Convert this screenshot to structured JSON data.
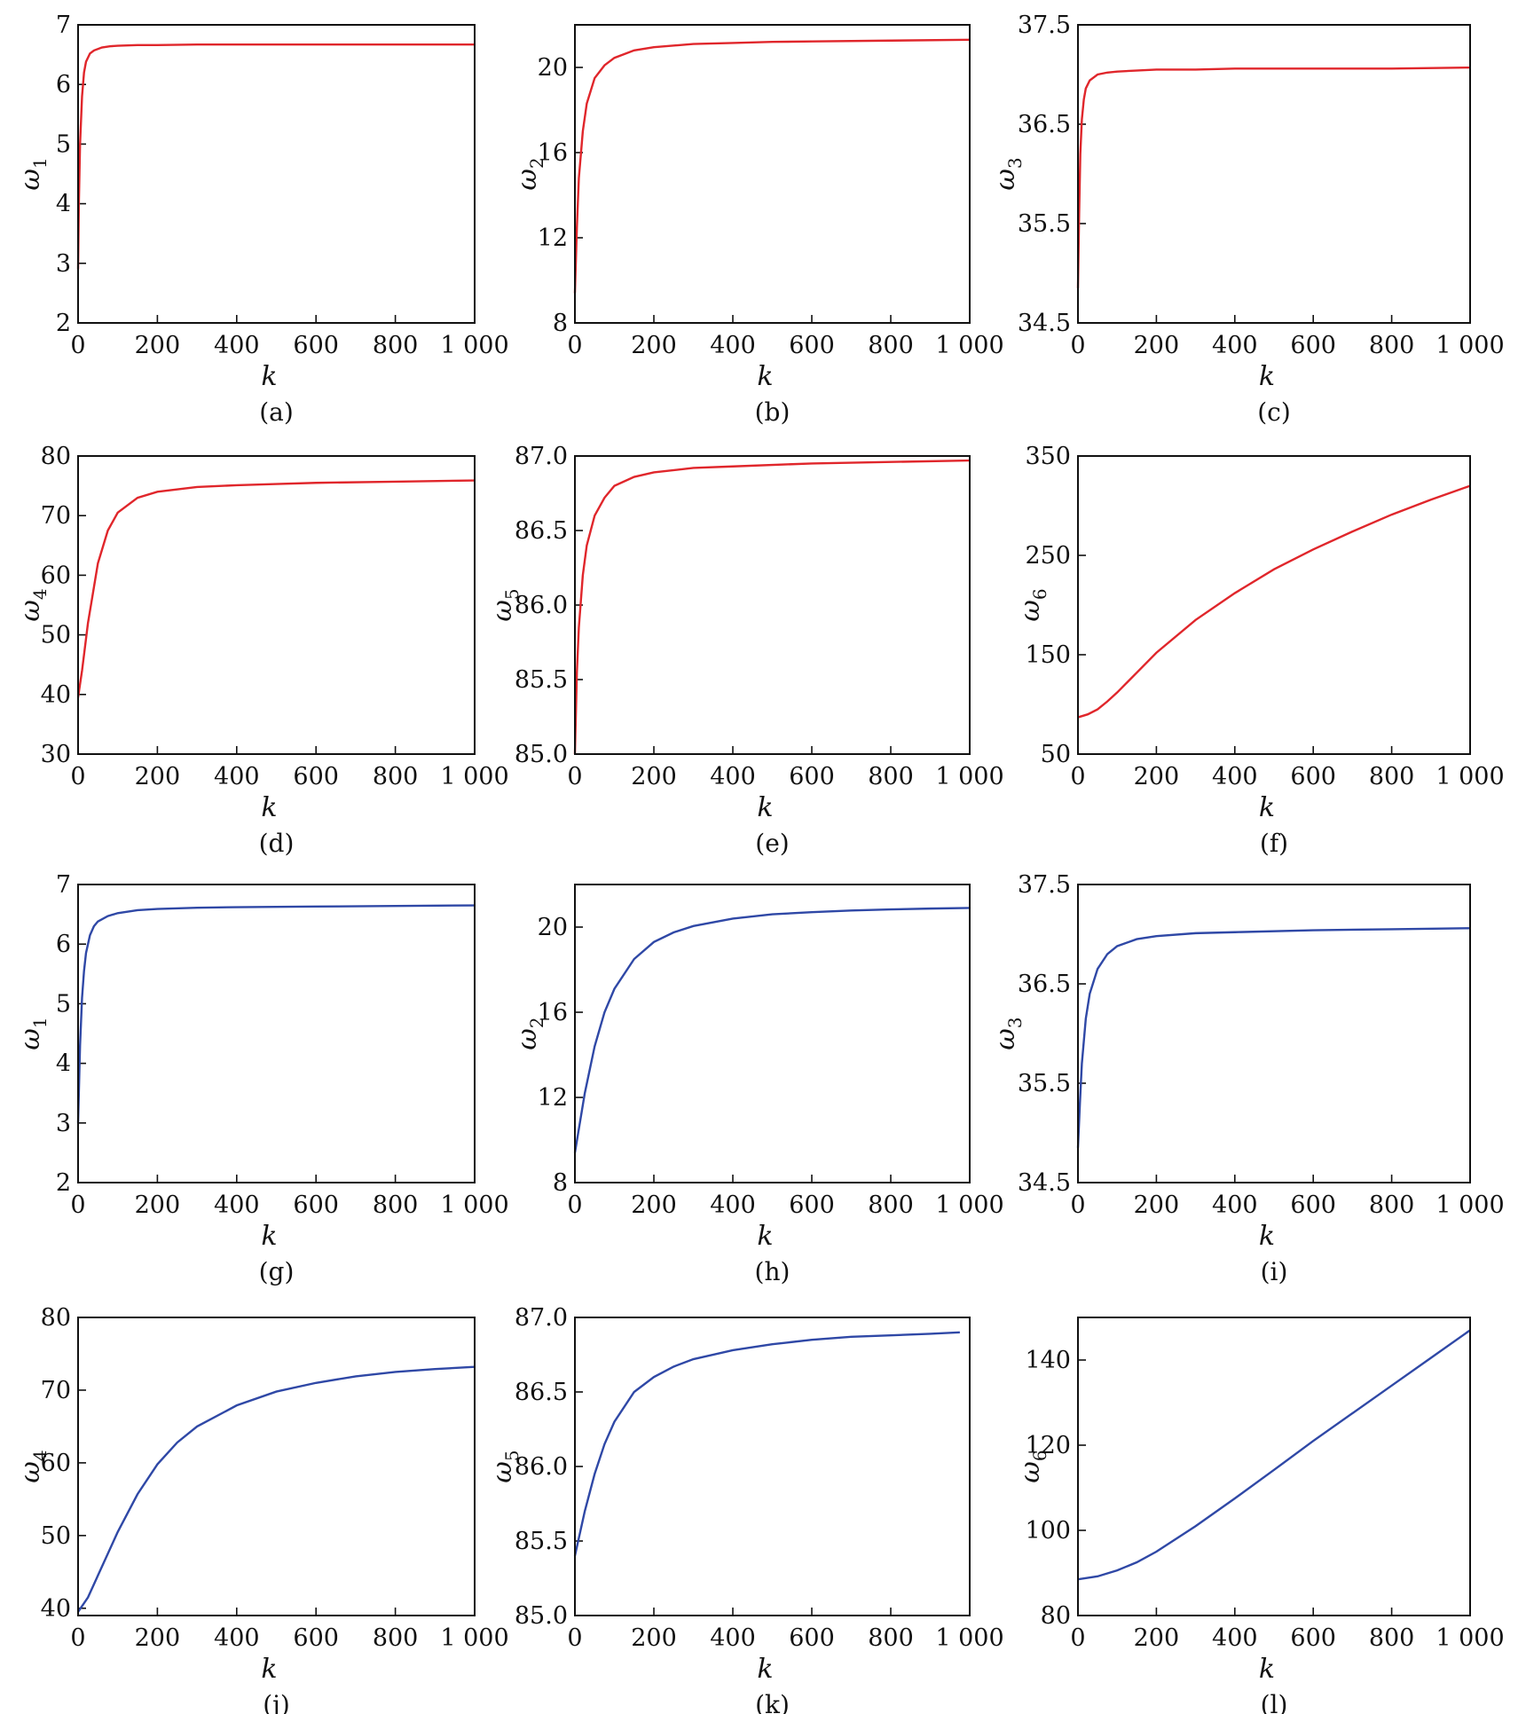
{
  "figure": {
    "background": "#ffffff"
  },
  "chart_data": [
    {
      "id": "a",
      "caption": "(a)",
      "type": "line",
      "xlabel": "k",
      "ylabel": "ω",
      "ylabel_sub": "1",
      "color": "#e0262b",
      "xlim": [
        0,
        1000
      ],
      "ylim": [
        2,
        7
      ],
      "xticks": [
        0,
        200,
        400,
        600,
        800,
        1000
      ],
      "xtick_labels": [
        "0",
        "200",
        "400",
        "600",
        "800",
        "1 000"
      ],
      "yticks": [
        2,
        3,
        4,
        5,
        6,
        7
      ],
      "ytick_labels": [
        "2",
        "3",
        "4",
        "5",
        "6",
        "7"
      ],
      "x": [
        0,
        2,
        5,
        10,
        15,
        20,
        30,
        40,
        60,
        80,
        100,
        150,
        200,
        300,
        400,
        600,
        800,
        1000
      ],
      "y": [
        2.9,
        4.0,
        5.0,
        5.8,
        6.2,
        6.38,
        6.52,
        6.57,
        6.62,
        6.64,
        6.65,
        6.66,
        6.66,
        6.67,
        6.67,
        6.67,
        6.67,
        6.67
      ]
    },
    {
      "id": "b",
      "caption": "(b)",
      "type": "line",
      "xlabel": "k",
      "ylabel": "ω",
      "ylabel_sub": "2",
      "color": "#e0262b",
      "xlim": [
        0,
        1000
      ],
      "ylim": [
        8,
        22
      ],
      "xticks": [
        0,
        200,
        400,
        600,
        800,
        1000
      ],
      "xtick_labels": [
        "0",
        "200",
        "400",
        "600",
        "800",
        "1 000"
      ],
      "yticks": [
        8,
        12,
        16,
        20
      ],
      "ytick_labels": [
        "8",
        "12",
        "16",
        "20"
      ],
      "x": [
        0,
        5,
        10,
        20,
        30,
        50,
        75,
        100,
        150,
        200,
        300,
        400,
        500,
        600,
        800,
        1000
      ],
      "y": [
        9.4,
        12.5,
        14.8,
        17.0,
        18.3,
        19.5,
        20.1,
        20.45,
        20.8,
        20.95,
        21.1,
        21.15,
        21.2,
        21.22,
        21.26,
        21.3
      ]
    },
    {
      "id": "c",
      "caption": "(c)",
      "type": "line",
      "xlabel": "k",
      "ylabel": "ω",
      "ylabel_sub": "3",
      "color": "#e0262b",
      "xlim": [
        0,
        1000
      ],
      "ylim": [
        34.5,
        37.5
      ],
      "xticks": [
        0,
        200,
        400,
        600,
        800,
        1000
      ],
      "xtick_labels": [
        "0",
        "200",
        "400",
        "600",
        "800",
        "1 000"
      ],
      "yticks": [
        34.5,
        35.5,
        36.5,
        37.5
      ],
      "ytick_labels": [
        "34.5",
        "35.5",
        "36.5",
        "37.5"
      ],
      "x": [
        0,
        3,
        6,
        10,
        15,
        20,
        30,
        50,
        75,
        100,
        200,
        300,
        400,
        600,
        800,
        1000
      ],
      "y": [
        34.85,
        35.6,
        36.2,
        36.55,
        36.75,
        36.86,
        36.94,
        37.0,
        37.02,
        37.03,
        37.05,
        37.05,
        37.06,
        37.06,
        37.06,
        37.07
      ]
    },
    {
      "id": "d",
      "caption": "(d)",
      "type": "line",
      "xlabel": "k",
      "ylabel": "ω",
      "ylabel_sub": "4",
      "color": "#e0262b",
      "xlim": [
        0,
        1000
      ],
      "ylim": [
        30,
        80
      ],
      "xticks": [
        0,
        200,
        400,
        600,
        800,
        1000
      ],
      "xtick_labels": [
        "0",
        "200",
        "400",
        "600",
        "800",
        "1 000"
      ],
      "yticks": [
        30,
        40,
        50,
        60,
        70,
        80
      ],
      "ytick_labels": [
        "30",
        "40",
        "50",
        "60",
        "70",
        "80"
      ],
      "x": [
        0,
        10,
        25,
        50,
        75,
        100,
        150,
        200,
        300,
        400,
        500,
        600,
        800,
        1000
      ],
      "y": [
        39.5,
        44,
        52,
        62,
        67.5,
        70.5,
        73.0,
        74.0,
        74.8,
        75.1,
        75.3,
        75.5,
        75.7,
        75.9
      ]
    },
    {
      "id": "e",
      "caption": "(e)",
      "type": "line",
      "xlabel": "k",
      "ylabel": "ω",
      "ylabel_sub": "5",
      "color": "#e0262b",
      "xlim": [
        0,
        1000
      ],
      "ylim": [
        85.0,
        87.0
      ],
      "xticks": [
        0,
        200,
        400,
        600,
        800,
        1000
      ],
      "xtick_labels": [
        "0",
        "200",
        "400",
        "600",
        "800",
        "1 000"
      ],
      "yticks": [
        85.0,
        85.5,
        86.0,
        86.5,
        87.0
      ],
      "ytick_labels": [
        "85.0",
        "85.5",
        "86.0",
        "86.5",
        "87.0"
      ],
      "x": [
        0,
        5,
        10,
        20,
        30,
        50,
        75,
        100,
        150,
        200,
        300,
        400,
        600,
        800,
        1000
      ],
      "y": [
        85.0,
        85.55,
        85.85,
        86.2,
        86.4,
        86.6,
        86.72,
        86.8,
        86.86,
        86.89,
        86.92,
        86.93,
        86.95,
        86.96,
        86.97
      ]
    },
    {
      "id": "f",
      "caption": "(f)",
      "type": "line",
      "xlabel": "k",
      "ylabel": "ω",
      "ylabel_sub": "6",
      "color": "#e0262b",
      "xlim": [
        0,
        1000
      ],
      "ylim": [
        50,
        350
      ],
      "xticks": [
        0,
        200,
        400,
        600,
        800,
        1000
      ],
      "xtick_labels": [
        "0",
        "200",
        "400",
        "600",
        "800",
        "1 000"
      ],
      "yticks": [
        50,
        150,
        250,
        350
      ],
      "ytick_labels": [
        "50",
        "150",
        "250",
        "350"
      ],
      "x": [
        0,
        25,
        50,
        75,
        100,
        150,
        200,
        300,
        400,
        500,
        600,
        700,
        800,
        900,
        1000
      ],
      "y": [
        87,
        90,
        95,
        103,
        112,
        132,
        152,
        185,
        212,
        236,
        256,
        274,
        291,
        306,
        320
      ]
    },
    {
      "id": "g",
      "caption": "(g)",
      "type": "line",
      "xlabel": "k",
      "ylabel": "ω",
      "ylabel_sub": "1",
      "color": "#2f48a6",
      "xlim": [
        0,
        1000
      ],
      "ylim": [
        2,
        7
      ],
      "xticks": [
        0,
        200,
        400,
        600,
        800,
        1000
      ],
      "xtick_labels": [
        "0",
        "200",
        "400",
        "600",
        "800",
        "1 000"
      ],
      "yticks": [
        2,
        3,
        4,
        5,
        6,
        7
      ],
      "ytick_labels": [
        "2",
        "3",
        "4",
        "5",
        "6",
        "7"
      ],
      "x": [
        0,
        5,
        10,
        15,
        20,
        30,
        40,
        50,
        75,
        100,
        150,
        200,
        300,
        400,
        600,
        800,
        1000
      ],
      "y": [
        3.0,
        4.3,
        5.1,
        5.55,
        5.85,
        6.15,
        6.3,
        6.38,
        6.47,
        6.52,
        6.57,
        6.59,
        6.61,
        6.62,
        6.63,
        6.64,
        6.65
      ]
    },
    {
      "id": "h",
      "caption": "(h)",
      "type": "line",
      "xlabel": "k",
      "ylabel": "ω",
      "ylabel_sub": "2",
      "color": "#2f48a6",
      "xlim": [
        0,
        1000
      ],
      "ylim": [
        8,
        22
      ],
      "xticks": [
        0,
        200,
        400,
        600,
        800,
        1000
      ],
      "xtick_labels": [
        "0",
        "200",
        "400",
        "600",
        "800",
        "1 000"
      ],
      "yticks": [
        8,
        12,
        16,
        20
      ],
      "ytick_labels": [
        "8",
        "12",
        "16",
        "20"
      ],
      "x": [
        0,
        25,
        50,
        75,
        100,
        150,
        200,
        250,
        300,
        400,
        500,
        600,
        700,
        800,
        900,
        1000
      ],
      "y": [
        9.4,
        12.2,
        14.4,
        16.0,
        17.1,
        18.5,
        19.3,
        19.75,
        20.05,
        20.4,
        20.6,
        20.7,
        20.78,
        20.83,
        20.87,
        20.9
      ]
    },
    {
      "id": "i",
      "caption": "(i)",
      "type": "line",
      "xlabel": "k",
      "ylabel": "ω",
      "ylabel_sub": "3",
      "color": "#2f48a6",
      "xlim": [
        0,
        1000
      ],
      "ylim": [
        34.5,
        37.5
      ],
      "xticks": [
        0,
        200,
        400,
        600,
        800,
        1000
      ],
      "xtick_labels": [
        "0",
        "200",
        "400",
        "600",
        "800",
        "1 000"
      ],
      "yticks": [
        34.5,
        35.5,
        36.5,
        37.5
      ],
      "ytick_labels": [
        "34.5",
        "35.5",
        "36.5",
        "37.5"
      ],
      "x": [
        0,
        5,
        10,
        20,
        30,
        50,
        75,
        100,
        150,
        200,
        300,
        400,
        600,
        800,
        1000
      ],
      "y": [
        34.85,
        35.3,
        35.7,
        36.15,
        36.4,
        36.65,
        36.8,
        36.88,
        36.95,
        36.98,
        37.01,
        37.02,
        37.04,
        37.05,
        37.06
      ]
    },
    {
      "id": "j",
      "caption": "(j)",
      "type": "line",
      "xlabel": "k",
      "ylabel": "ω",
      "ylabel_sub": "4",
      "color": "#2f48a6",
      "xlim": [
        0,
        1000
      ],
      "ylim": [
        39,
        80
      ],
      "xticks": [
        0,
        200,
        400,
        600,
        800,
        1000
      ],
      "xtick_labels": [
        "0",
        "200",
        "400",
        "600",
        "800",
        "1 000"
      ],
      "yticks": [
        40,
        50,
        60,
        70,
        80
      ],
      "ytick_labels": [
        "40",
        "50",
        "60",
        "70",
        "80"
      ],
      "x": [
        0,
        25,
        50,
        100,
        150,
        200,
        250,
        300,
        400,
        500,
        600,
        700,
        800,
        900,
        1000
      ],
      "y": [
        39.5,
        41.5,
        44.5,
        50.5,
        55.7,
        59.8,
        62.8,
        65.0,
        67.9,
        69.8,
        71.0,
        71.9,
        72.5,
        72.9,
        73.2
      ]
    },
    {
      "id": "k",
      "caption": "(k)",
      "type": "line",
      "xlabel": "k",
      "ylabel": "ω",
      "ylabel_sub": "5",
      "color": "#2f48a6",
      "xlim": [
        0,
        1000
      ],
      "ylim": [
        85.0,
        87.0
      ],
      "xticks": [
        0,
        200,
        400,
        600,
        800,
        1000
      ],
      "xtick_labels": [
        "0",
        "200",
        "400",
        "600",
        "800",
        "1 000"
      ],
      "yticks": [
        85.0,
        85.5,
        86.0,
        86.5,
        87.0
      ],
      "ytick_labels": [
        "85.0",
        "85.5",
        "86.0",
        "86.5",
        "87.0"
      ],
      "x": [
        0,
        25,
        50,
        75,
        100,
        150,
        200,
        250,
        300,
        400,
        500,
        600,
        700,
        800,
        900,
        975
      ],
      "y": [
        85.4,
        85.7,
        85.95,
        86.15,
        86.3,
        86.5,
        86.6,
        86.67,
        86.72,
        86.78,
        86.82,
        86.85,
        86.87,
        86.88,
        86.89,
        86.9
      ]
    },
    {
      "id": "l",
      "caption": "(l)",
      "type": "line",
      "xlabel": "k",
      "ylabel": "ω",
      "ylabel_sub": "6",
      "color": "#2f48a6",
      "xlim": [
        0,
        1000
      ],
      "ylim": [
        80,
        150
      ],
      "xticks": [
        0,
        200,
        400,
        600,
        800,
        1000
      ],
      "xtick_labels": [
        "0",
        "200",
        "400",
        "600",
        "800",
        "1 000"
      ],
      "yticks": [
        80,
        100,
        120,
        140
      ],
      "ytick_labels": [
        "80",
        "100",
        "120",
        "140"
      ],
      "x": [
        0,
        50,
        100,
        150,
        200,
        250,
        300,
        400,
        500,
        600,
        700,
        800,
        900,
        1000
      ],
      "y": [
        88.5,
        89.2,
        90.6,
        92.5,
        95.0,
        98.0,
        101.0,
        107.5,
        114.2,
        121.0,
        127.5,
        134.0,
        140.5,
        147.0
      ]
    }
  ]
}
